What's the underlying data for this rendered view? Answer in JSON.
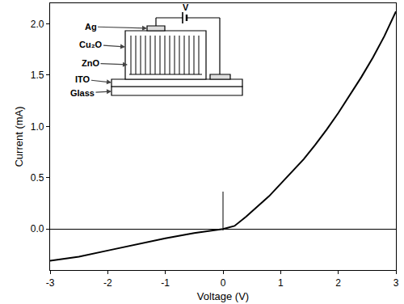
{
  "chart_data": {
    "type": "line",
    "x_label": "Voltage (V)",
    "y_label": "Current (mA)",
    "x": [
      -3,
      -2.5,
      -2,
      -1.5,
      -1,
      -0.5,
      0,
      0.2,
      0.4,
      0.6,
      0.8,
      1.0,
      1.2,
      1.4,
      1.6,
      1.8,
      2.0,
      2.2,
      2.4,
      2.6,
      2.8,
      3.0
    ],
    "values": [
      -0.31,
      -0.27,
      -0.21,
      -0.15,
      -0.09,
      -0.04,
      0.0,
      0.03,
      0.12,
      0.22,
      0.32,
      0.44,
      0.56,
      0.68,
      0.82,
      0.97,
      1.13,
      1.3,
      1.48,
      1.67,
      1.88,
      2.12
    ],
    "color": "#000000",
    "xlim": [
      -3,
      3
    ],
    "ylim": [
      -0.4,
      2.2
    ],
    "xticks": [
      -3,
      -2,
      -1,
      0,
      1,
      2,
      3
    ],
    "yticks": [
      {
        "value": 0,
        "label": "0.0"
      },
      {
        "value": 0.5,
        "label": "0.5"
      },
      {
        "value": 1,
        "label": "1.0"
      },
      {
        "value": 1.5,
        "label": "1.5"
      },
      {
        "value": 2,
        "label": "2.0"
      }
    ],
    "grid": false,
    "annotations": [
      "Ag",
      "Cu₂O",
      "ZnO",
      "ITO",
      "Glass",
      "V"
    ]
  }
}
